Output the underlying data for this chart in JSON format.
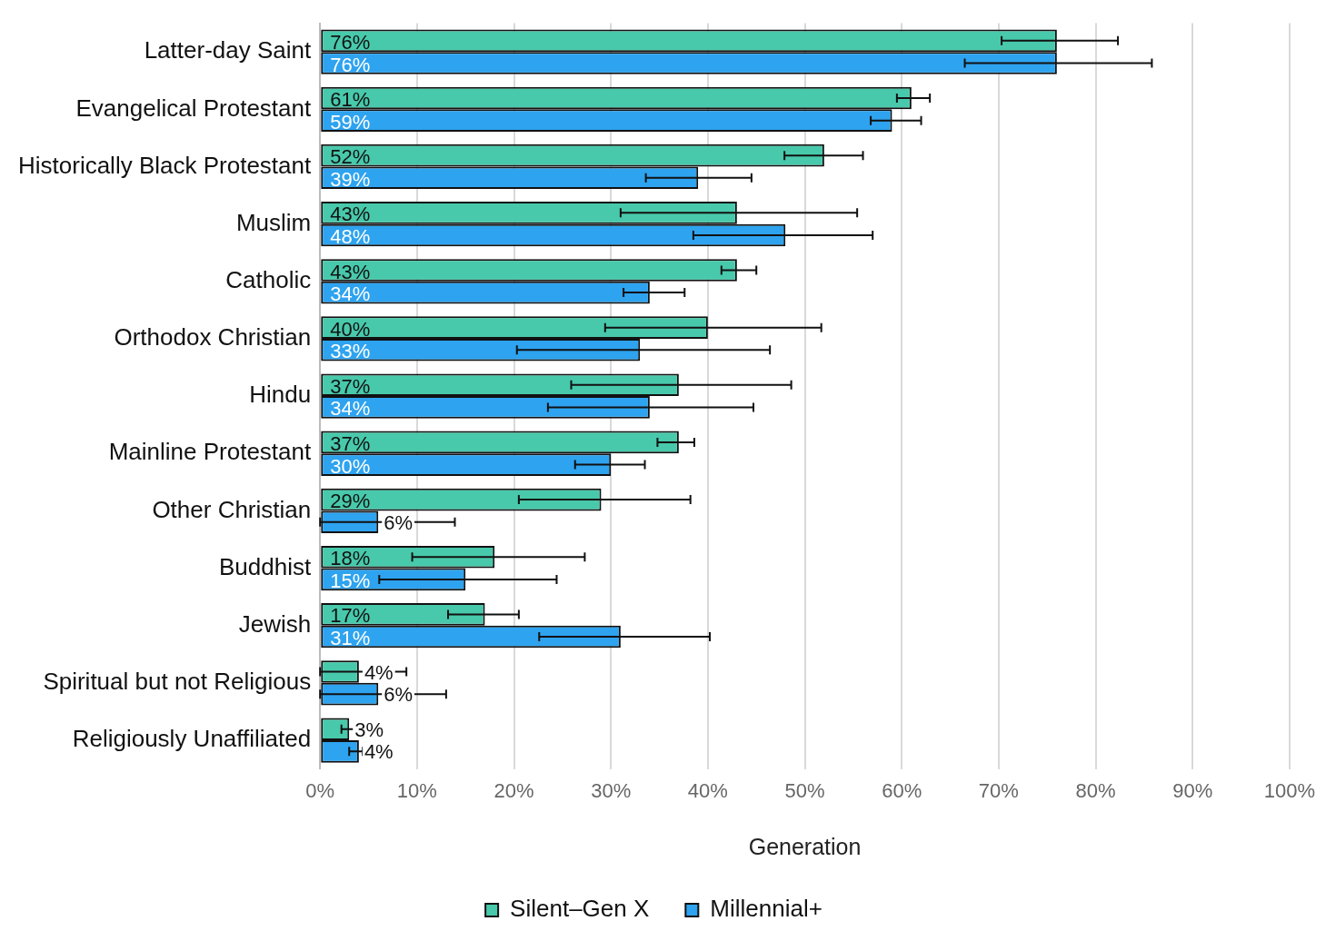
{
  "chart_data": {
    "type": "bar",
    "orientation": "horizontal",
    "xlabel": "Generation",
    "categories": [
      "Latter-day Saint",
      "Evangelical Protestant",
      "Historically Black Protestant",
      "Muslim",
      "Catholic",
      "Orthodox Christian",
      "Hindu",
      "Mainline Protestant",
      "Other Christian",
      "Buddhist",
      "Jewish",
      "Spiritual but not Religious",
      "Religiously Unaffiliated"
    ],
    "series": [
      {
        "name": "Silent–Gen X",
        "color": "#48c9ab",
        "values": [
          76,
          61,
          52,
          43,
          43,
          40,
          37,
          37,
          29,
          18,
          17,
          4,
          3
        ],
        "value_labels": [
          "76%",
          "61%",
          "52%",
          "43%",
          "43%",
          "40%",
          "37%",
          "37%",
          "29%",
          "18%",
          "17%",
          "4%",
          "3%"
        ],
        "errors": [
          [
            70.3,
            82.3
          ],
          [
            59.5,
            62.9
          ],
          [
            47.9,
            56.0
          ],
          [
            31.0,
            55.4
          ],
          [
            41.4,
            45.0
          ],
          [
            29.4,
            51.7
          ],
          [
            25.9,
            48.6
          ],
          [
            34.8,
            38.6
          ],
          [
            20.5,
            38.2
          ],
          [
            9.5,
            27.3
          ],
          [
            13.2,
            20.5
          ],
          [
            0,
            8.9
          ],
          [
            2.2,
            3.6
          ]
        ]
      },
      {
        "name": "Millennial+",
        "color": "#2ea3ef",
        "values": [
          76,
          59,
          39,
          48,
          34,
          33,
          34,
          30,
          6,
          15,
          31,
          6,
          4
        ],
        "value_labels": [
          "76%",
          "59%",
          "39%",
          "48%",
          "34%",
          "33%",
          "34%",
          "30%",
          "6%",
          "15%",
          "31%",
          "6%",
          "4%"
        ],
        "errors": [
          [
            66.5,
            85.8
          ],
          [
            56.8,
            62.0
          ],
          [
            33.6,
            44.5
          ],
          [
            38.5,
            57.0
          ],
          [
            31.3,
            37.6
          ],
          [
            20.3,
            46.4
          ],
          [
            23.5,
            44.7
          ],
          [
            26.3,
            33.5
          ],
          [
            0,
            13.9
          ],
          [
            6.1,
            24.4
          ],
          [
            22.6,
            40.2
          ],
          [
            0,
            13.0
          ],
          [
            3.0,
            4.4
          ]
        ]
      }
    ],
    "xlim": [
      0,
      100
    ],
    "xticks": [
      {
        "value": 0,
        "label": "0%"
      },
      {
        "value": 10,
        "label": "10%"
      },
      {
        "value": 20,
        "label": "20%"
      },
      {
        "value": 30,
        "label": "30%"
      },
      {
        "value": 40,
        "label": "40%"
      },
      {
        "value": 50,
        "label": "50%"
      },
      {
        "value": 60,
        "label": "60%"
      },
      {
        "value": 70,
        "label": "70%"
      },
      {
        "value": 80,
        "label": "80%"
      },
      {
        "value": 90,
        "label": "90%"
      },
      {
        "value": 100,
        "label": "100%"
      }
    ],
    "grid": "x",
    "legend": "bottom"
  }
}
